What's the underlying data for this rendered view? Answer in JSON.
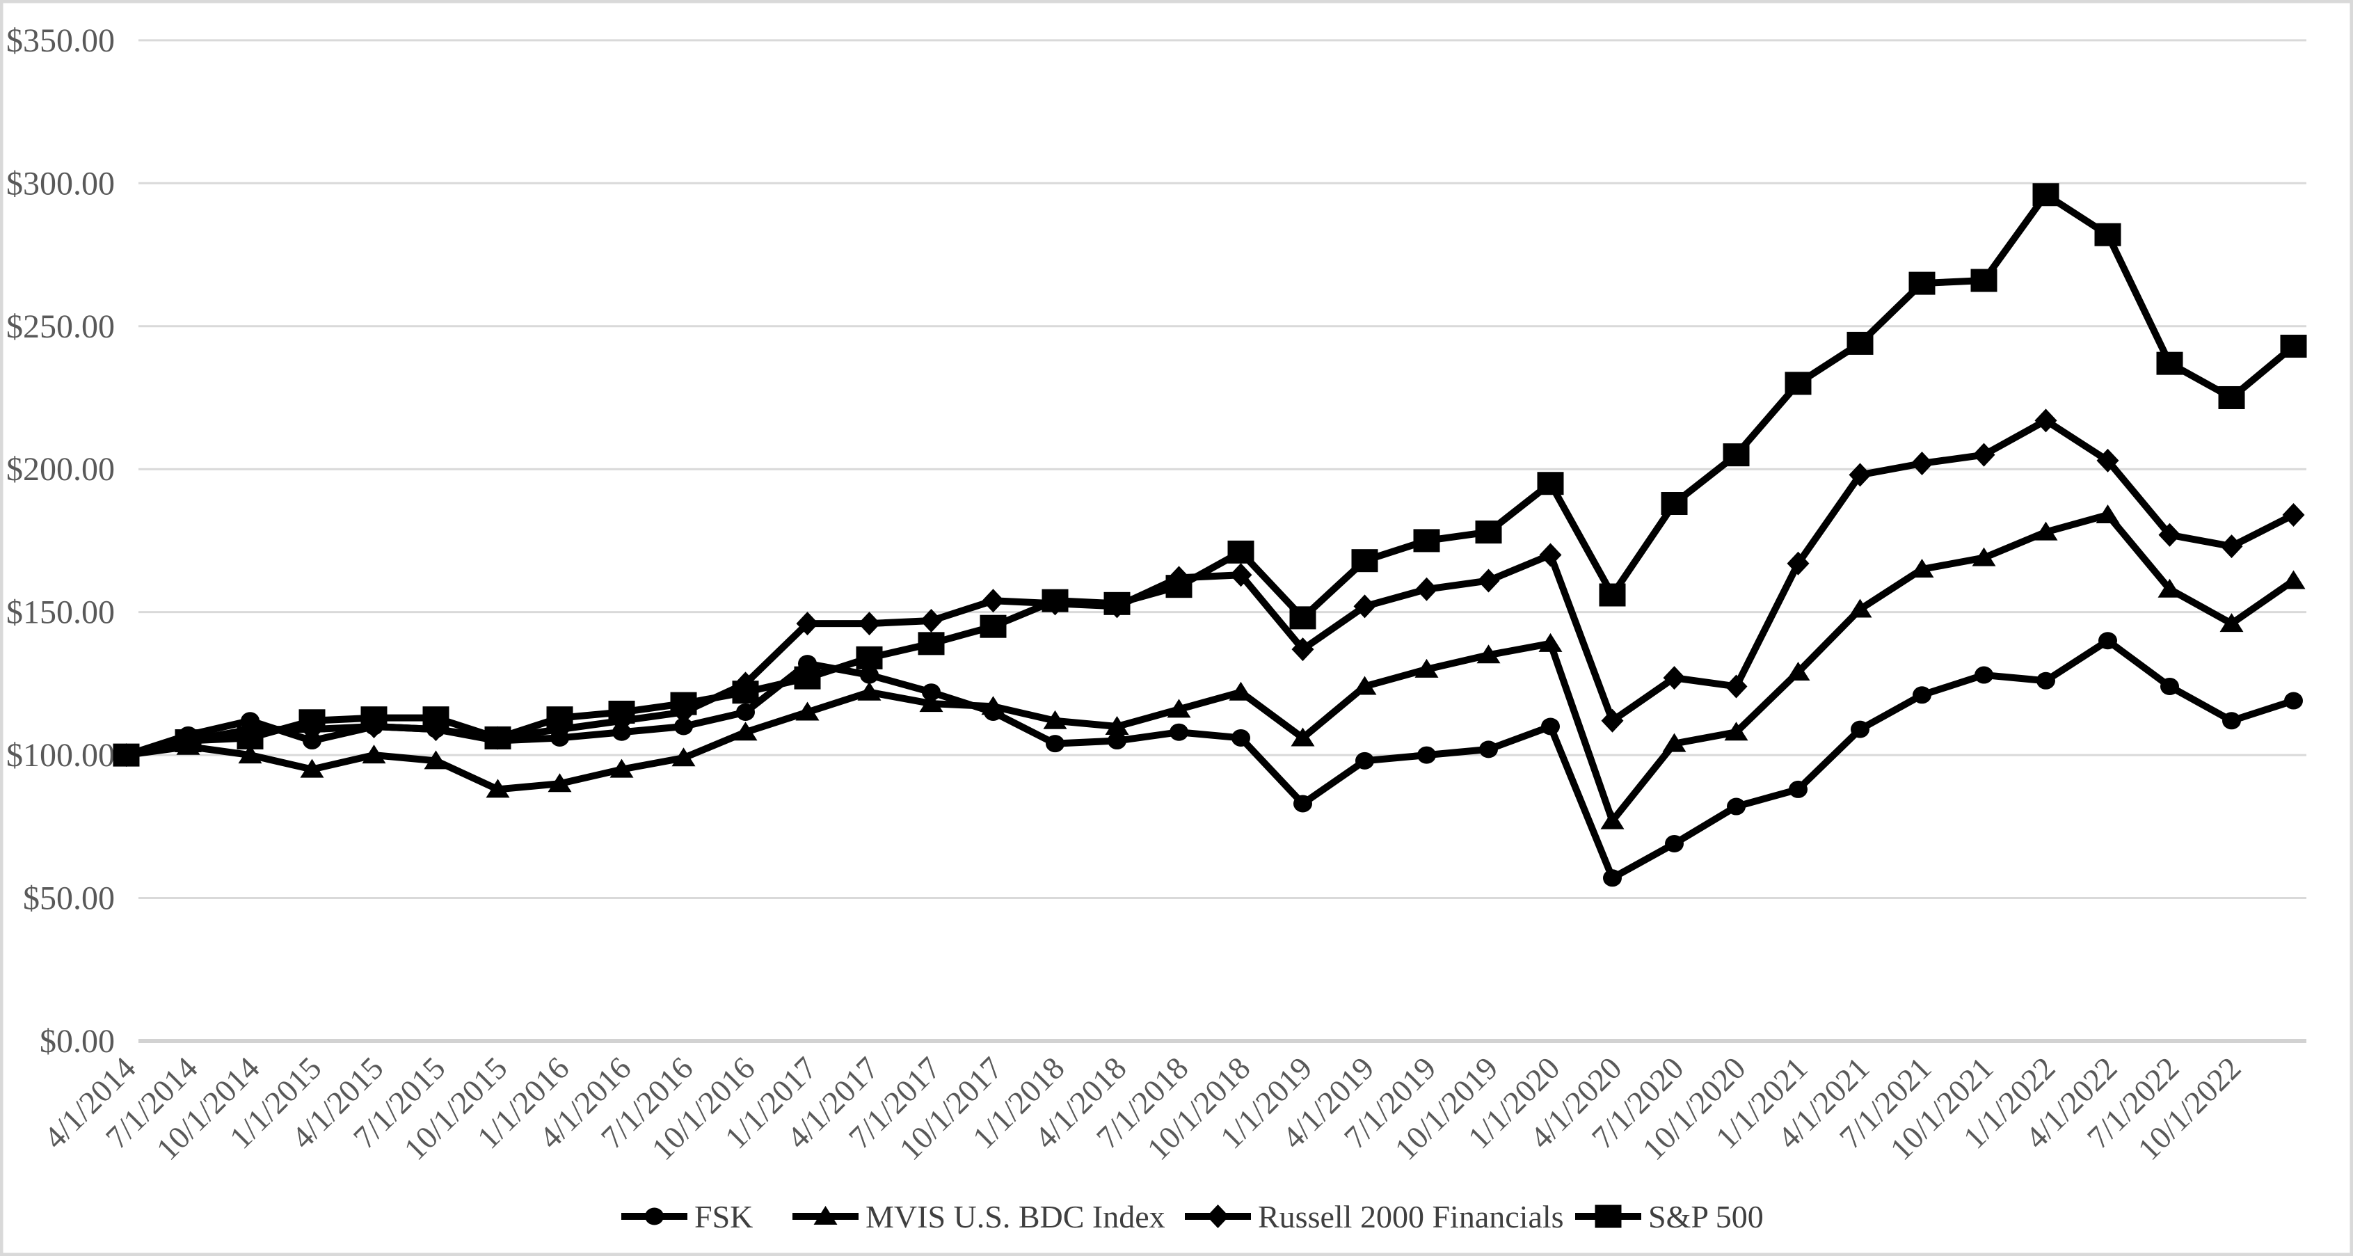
{
  "chart_data": {
    "type": "line",
    "title": "",
    "xlabel": "",
    "ylabel": "",
    "x": {
      "tick_labels": [
        "4/1/2014",
        "7/1/2014",
        "10/1/2014",
        "1/1/2015",
        "4/1/2015",
        "7/1/2015",
        "10/1/2015",
        "1/1/2016",
        "4/1/2016",
        "7/1/2016",
        "10/1/2016",
        "1/1/2017",
        "4/1/2017",
        "7/1/2017",
        "10/1/2017",
        "1/1/2018",
        "4/1/2018",
        "7/1/2018",
        "10/1/2018",
        "1/1/2019",
        "4/1/2019",
        "7/1/2019",
        "10/1/2019",
        "1/1/2020",
        "4/1/2020",
        "7/1/2020",
        "10/1/2020",
        "1/1/2021",
        "4/1/2021",
        "7/1/2021",
        "10/1/2021",
        "1/1/2022",
        "4/1/2022",
        "7/1/2022",
        "10/1/2022"
      ],
      "points_count": 36,
      "note": "36 data points; the final point (period ending 12/31/2022) has no axis label"
    },
    "y_axis": {
      "min": 0,
      "max": 350,
      "step": 50,
      "tick_labels": [
        "$0.00",
        "$50.00",
        "$100.00",
        "$150.00",
        "$200.00",
        "$250.00",
        "$300.00",
        "$350.00"
      ]
    },
    "grid": "horizontal",
    "legend_position": "bottom",
    "series": [
      {
        "name": "FSK",
        "marker": "circle",
        "values": [
          100,
          107,
          112,
          105,
          110,
          109,
          105,
          106,
          108,
          110,
          115,
          132,
          128,
          122,
          115,
          104,
          105,
          108,
          106,
          83,
          98,
          100,
          102,
          110,
          57,
          69,
          82,
          88,
          109,
          121,
          128,
          126,
          140,
          124,
          112,
          119
        ]
      },
      {
        "name": "MVIS U.S. BDC Index",
        "marker": "triangle",
        "values": [
          100,
          103,
          100,
          95,
          100,
          98,
          88,
          90,
          95,
          99,
          108,
          115,
          122,
          118,
          117,
          112,
          110,
          116,
          122,
          106,
          124,
          130,
          135,
          139,
          77,
          104,
          108,
          129,
          151,
          165,
          169,
          178,
          184,
          158,
          146,
          161
        ]
      },
      {
        "name": "Russell 2000 Financials",
        "marker": "diamond",
        "values": [
          100,
          105,
          109,
          109,
          110,
          109,
          106,
          109,
          112,
          115,
          125,
          146,
          146,
          147,
          154,
          153,
          152,
          162,
          163,
          137,
          152,
          158,
          161,
          170,
          112,
          127,
          124,
          167,
          198,
          202,
          205,
          217,
          203,
          177,
          173,
          184
        ]
      },
      {
        "name": "S&P 500",
        "marker": "square",
        "values": [
          100,
          105,
          106,
          112,
          113,
          113,
          106,
          113,
          115,
          118,
          122,
          127,
          134,
          139,
          145,
          154,
          153,
          159,
          171,
          148,
          168,
          175,
          178,
          195,
          156,
          188,
          205,
          230,
          244,
          265,
          266,
          296,
          282,
          237,
          225,
          243
        ]
      }
    ],
    "legend_items": [
      "FSK",
      "MVIS U.S. BDC Index",
      "Russell 2000 Financials",
      "S&P 500"
    ]
  },
  "colors": {
    "series_line": "#000000",
    "axis_text": "#595959",
    "legend_text": "#3f3f3f",
    "gridline": "#D9D9D9",
    "axis_line": "#D2D2D2",
    "frame_border": "#D9D9D9",
    "background": "#FFFFFF"
  }
}
